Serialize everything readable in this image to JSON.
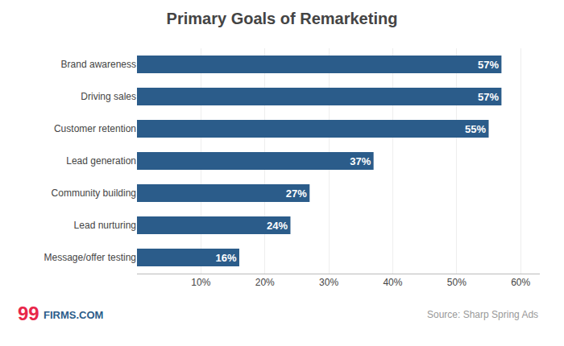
{
  "chart_data": {
    "type": "bar",
    "orientation": "horizontal",
    "title": "Primary Goals of Remarketing",
    "categories": [
      "Message/offer testing",
      "Lead nurturing",
      "Community building",
      "Lead generation",
      "Customer retention",
      "Driving sales",
      "Brand awareness"
    ],
    "values": [
      16,
      24,
      27,
      37,
      55,
      57,
      57
    ],
    "value_labels": [
      "16%",
      "24%",
      "27%",
      "37%",
      "55%",
      "57%",
      "57%"
    ],
    "data_labels": true,
    "color": "#2B5C8A",
    "xlim": [
      0,
      63
    ],
    "xticks": [
      {
        "value": 0,
        "label": null
      },
      {
        "value": 10,
        "label": "10%"
      },
      {
        "value": 20,
        "label": "20%"
      },
      {
        "value": 30,
        "label": "30%"
      },
      {
        "value": 40,
        "label": "40%"
      },
      {
        "value": 50,
        "label": "50%"
      },
      {
        "value": 60,
        "label": "60%"
      }
    ],
    "grid": true,
    "annotations": [
      {
        "text": "99",
        "color": "#E8264A"
      },
      {
        "text": "FIRMS.COM",
        "color": "#2B5C8A"
      },
      {
        "text": "Source: Sharp Spring Ads"
      }
    ]
  }
}
